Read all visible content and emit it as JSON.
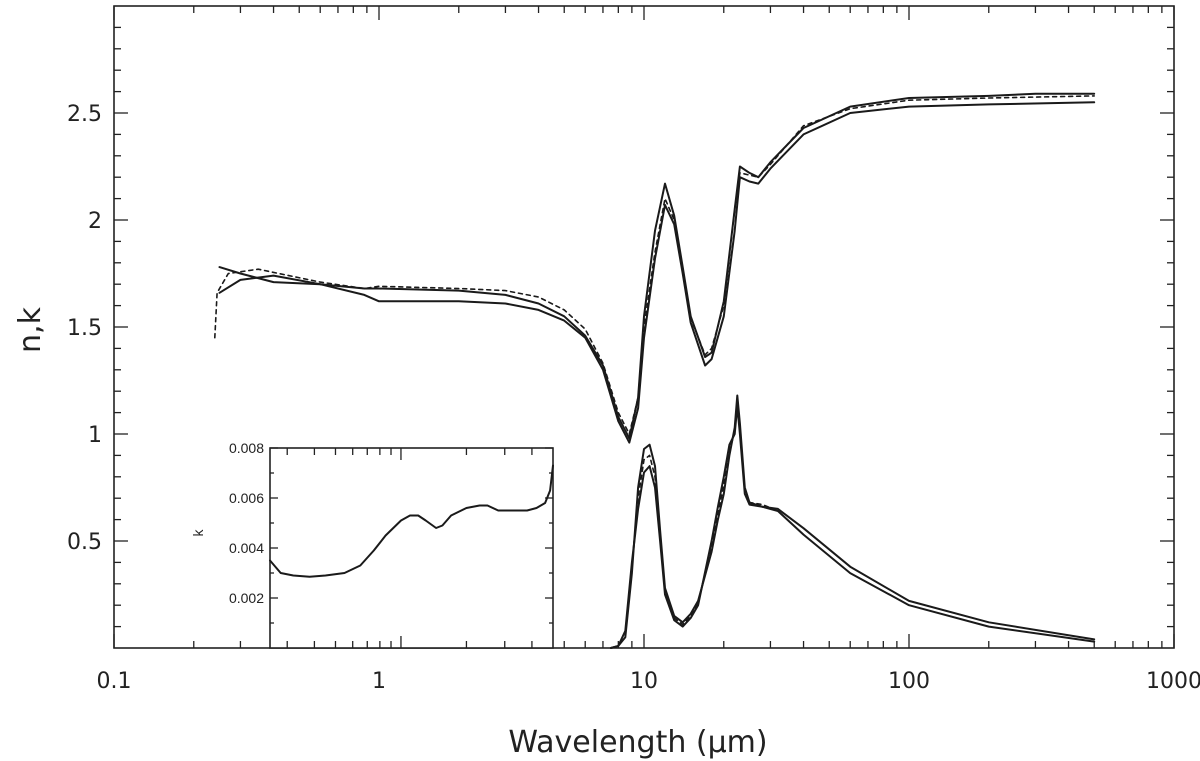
{
  "chart_data": {
    "type": "line",
    "title": "",
    "xlabel": "Wavelength  (μm)",
    "ylabel": "n,k",
    "xscale": "log",
    "xlim": [
      0.1,
      1000
    ],
    "ylim": [
      0,
      3.0
    ],
    "x_ticks": [
      {
        "value": 0.1,
        "label": "0.1"
      },
      {
        "value": 1,
        "label": "1"
      },
      {
        "value": 10,
        "label": "10"
      },
      {
        "value": 100,
        "label": "100"
      },
      {
        "value": 1000,
        "label": "1000"
      }
    ],
    "y_ticks": [
      {
        "value": 0.5,
        "label": "0.5"
      },
      {
        "value": 1,
        "label": "1"
      },
      {
        "value": 1.5,
        "label": "1.5"
      },
      {
        "value": 2,
        "label": "2"
      },
      {
        "value": 2.5,
        "label": "2.5"
      }
    ],
    "grid": false,
    "legend": "none",
    "series": [
      {
        "style": "solid",
        "points": [
          [
            0.25,
            1.78
          ],
          [
            0.3,
            1.75
          ],
          [
            0.4,
            1.71
          ],
          [
            0.6,
            1.7
          ],
          [
            0.88,
            1.68
          ],
          [
            1,
            1.68
          ],
          [
            2,
            1.67
          ],
          [
            3,
            1.65
          ],
          [
            4,
            1.61
          ],
          [
            5,
            1.55
          ],
          [
            6,
            1.46
          ],
          [
            7,
            1.32
          ],
          [
            8,
            1.08
          ],
          [
            8.8,
            0.98
          ],
          [
            9.5,
            1.17
          ],
          [
            10,
            1.55
          ],
          [
            11,
            1.95
          ],
          [
            12,
            2.17
          ],
          [
            13,
            2.02
          ],
          [
            14,
            1.78
          ],
          [
            15,
            1.55
          ],
          [
            17,
            1.36
          ],
          [
            18,
            1.38
          ],
          [
            20,
            1.62
          ],
          [
            22,
            2.05
          ],
          [
            23,
            2.25
          ],
          [
            25,
            2.22
          ],
          [
            27,
            2.2
          ],
          [
            30,
            2.27
          ],
          [
            40,
            2.43
          ],
          [
            60,
            2.53
          ],
          [
            100,
            2.57
          ],
          [
            200,
            2.58
          ],
          [
            300,
            2.59
          ],
          [
            500,
            2.59
          ]
        ]
      },
      {
        "style": "solid",
        "points": [
          [
            0.25,
            1.66
          ],
          [
            0.3,
            1.72
          ],
          [
            0.4,
            1.74
          ],
          [
            0.6,
            1.7
          ],
          [
            0.88,
            1.65
          ],
          [
            1,
            1.62
          ],
          [
            2,
            1.62
          ],
          [
            3,
            1.61
          ],
          [
            4,
            1.58
          ],
          [
            5,
            1.53
          ],
          [
            6,
            1.45
          ],
          [
            7,
            1.3
          ],
          [
            8,
            1.06
          ],
          [
            8.8,
            0.96
          ],
          [
            9.5,
            1.12
          ],
          [
            10,
            1.45
          ],
          [
            11,
            1.82
          ],
          [
            12,
            2.07
          ],
          [
            13,
            1.98
          ],
          [
            14,
            1.75
          ],
          [
            15,
            1.52
          ],
          [
            17,
            1.32
          ],
          [
            18,
            1.35
          ],
          [
            20,
            1.55
          ],
          [
            22,
            1.95
          ],
          [
            23,
            2.2
          ],
          [
            25,
            2.18
          ],
          [
            27,
            2.17
          ],
          [
            30,
            2.24
          ],
          [
            40,
            2.4
          ],
          [
            60,
            2.5
          ],
          [
            100,
            2.53
          ],
          [
            200,
            2.54
          ],
          [
            500,
            2.55
          ]
        ]
      },
      {
        "style": "dashed",
        "points": [
          [
            0.24,
            1.45
          ],
          [
            0.245,
            1.66
          ],
          [
            0.27,
            1.75
          ],
          [
            0.35,
            1.77
          ],
          [
            0.6,
            1.71
          ],
          [
            0.88,
            1.68
          ],
          [
            1,
            1.69
          ],
          [
            2,
            1.68
          ],
          [
            3,
            1.67
          ],
          [
            4,
            1.64
          ],
          [
            5,
            1.58
          ],
          [
            6,
            1.49
          ],
          [
            7,
            1.33
          ],
          [
            8,
            1.1
          ],
          [
            8.8,
            1.0
          ],
          [
            9.5,
            1.17
          ],
          [
            10,
            1.5
          ],
          [
            11,
            1.85
          ],
          [
            12,
            2.1
          ],
          [
            13,
            2.0
          ],
          [
            14,
            1.77
          ],
          [
            15,
            1.54
          ],
          [
            17,
            1.37
          ],
          [
            18,
            1.4
          ],
          [
            20,
            1.6
          ],
          [
            22,
            2.05
          ],
          [
            23,
            2.22
          ],
          [
            25,
            2.21
          ],
          [
            27,
            2.2
          ],
          [
            30,
            2.26
          ],
          [
            40,
            2.44
          ],
          [
            60,
            2.52
          ],
          [
            100,
            2.56
          ],
          [
            200,
            2.57
          ],
          [
            500,
            2.58
          ]
        ]
      },
      {
        "style": "solid",
        "points": [
          [
            7.5,
            0.0
          ],
          [
            8,
            0.01
          ],
          [
            8.5,
            0.05
          ],
          [
            9,
            0.35
          ],
          [
            9.5,
            0.75
          ],
          [
            10,
            0.93
          ],
          [
            10.5,
            0.95
          ],
          [
            11,
            0.85
          ],
          [
            11.5,
            0.55
          ],
          [
            12,
            0.28
          ],
          [
            13,
            0.15
          ],
          [
            14,
            0.12
          ],
          [
            15,
            0.16
          ],
          [
            16,
            0.22
          ],
          [
            18,
            0.45
          ],
          [
            19,
            0.6
          ],
          [
            20,
            0.72
          ],
          [
            21,
            0.9
          ],
          [
            22,
            1.03
          ],
          [
            22.5,
            1.18
          ],
          [
            23,
            1.05
          ],
          [
            24,
            0.75
          ],
          [
            25,
            0.68
          ],
          [
            28,
            0.66
          ],
          [
            32,
            0.64
          ],
          [
            40,
            0.53
          ],
          [
            60,
            0.35
          ],
          [
            100,
            0.2
          ],
          [
            200,
            0.1
          ],
          [
            500,
            0.03
          ]
        ]
      },
      {
        "style": "solid",
        "points": [
          [
            7.5,
            0.0
          ],
          [
            8,
            0.01
          ],
          [
            8.5,
            0.08
          ],
          [
            9,
            0.4
          ],
          [
            9.5,
            0.65
          ],
          [
            10,
            0.82
          ],
          [
            10.5,
            0.85
          ],
          [
            11,
            0.75
          ],
          [
            11.5,
            0.5
          ],
          [
            12,
            0.25
          ],
          [
            13,
            0.13
          ],
          [
            14,
            0.1
          ],
          [
            15,
            0.14
          ],
          [
            16,
            0.2
          ],
          [
            18,
            0.5
          ],
          [
            19,
            0.66
          ],
          [
            20,
            0.8
          ],
          [
            21,
            0.95
          ],
          [
            22,
            1.0
          ],
          [
            22.5,
            1.13
          ],
          [
            23,
            1.0
          ],
          [
            24,
            0.72
          ],
          [
            25,
            0.67
          ],
          [
            28,
            0.66
          ],
          [
            32,
            0.65
          ],
          [
            40,
            0.56
          ],
          [
            60,
            0.38
          ],
          [
            100,
            0.22
          ],
          [
            200,
            0.12
          ],
          [
            500,
            0.04
          ]
        ]
      },
      {
        "style": "dashed",
        "points": [
          [
            9,
            0.38
          ],
          [
            9.5,
            0.7
          ],
          [
            10,
            0.88
          ],
          [
            10.5,
            0.9
          ],
          [
            11,
            0.8
          ],
          [
            11.5,
            0.52
          ],
          [
            12,
            0.26
          ],
          [
            13,
            0.14
          ],
          [
            14,
            0.11
          ],
          [
            15,
            0.15
          ],
          [
            16,
            0.21
          ],
          [
            18,
            0.48
          ],
          [
            19,
            0.63
          ],
          [
            20,
            0.76
          ],
          [
            21,
            0.92
          ],
          [
            22,
            1.01
          ],
          [
            22.5,
            1.15
          ],
          [
            23,
            1.02
          ],
          [
            24,
            0.73
          ],
          [
            25,
            0.68
          ],
          [
            28,
            0.67
          ],
          [
            32,
            0.64
          ]
        ]
      }
    ],
    "inset": {
      "type": "line",
      "ylabel": "k",
      "xscale": "log",
      "xlim": [
        0.25,
        5
      ],
      "ylim": [
        0,
        0.008
      ],
      "y_ticks": [
        {
          "value": 0.002,
          "label": "0.002"
        },
        {
          "value": 0.004,
          "label": "0.004"
        },
        {
          "value": 0.006,
          "label": "0.006"
        },
        {
          "value": 0.008,
          "label": "0.008"
        }
      ],
      "series": [
        {
          "style": "solid",
          "points": [
            [
              0.25,
              0.0035
            ],
            [
              0.28,
              0.003
            ],
            [
              0.32,
              0.0029
            ],
            [
              0.38,
              0.00285
            ],
            [
              0.45,
              0.0029
            ],
            [
              0.55,
              0.003
            ],
            [
              0.65,
              0.0033
            ],
            [
              0.75,
              0.0039
            ],
            [
              0.85,
              0.0045
            ],
            [
              1.0,
              0.0051
            ],
            [
              1.1,
              0.0053
            ],
            [
              1.2,
              0.0053
            ],
            [
              1.3,
              0.0051
            ],
            [
              1.45,
              0.0048
            ],
            [
              1.55,
              0.0049
            ],
            [
              1.7,
              0.0053
            ],
            [
              2.0,
              0.0056
            ],
            [
              2.3,
              0.0057
            ],
            [
              2.5,
              0.0057
            ],
            [
              2.8,
              0.0055
            ],
            [
              3.2,
              0.0055
            ],
            [
              3.8,
              0.0055
            ],
            [
              4.2,
              0.0056
            ],
            [
              4.6,
              0.0058
            ],
            [
              4.85,
              0.0063
            ],
            [
              5.0,
              0.0073
            ]
          ]
        }
      ]
    }
  }
}
